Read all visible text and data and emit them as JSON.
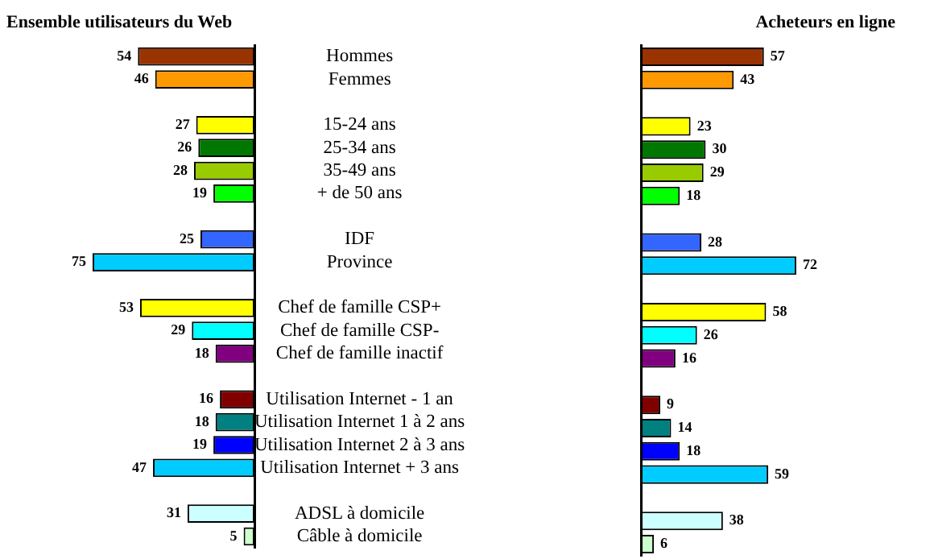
{
  "chart_data": [
    {
      "type": "bar",
      "title": "Ensemble utilisateurs du Web",
      "orientation": "horizontal",
      "data_labels": true,
      "tick_labels": "y",
      "categories": [
        "Hommes",
        "Femmes",
        null,
        "15-24 ans",
        "25-34 ans",
        "35-49 ans",
        "+ de 50 ans",
        null,
        "IDF",
        "Province",
        null,
        "Chef de famille CSP+",
        "Chef de famille CSP-",
        "Chef de famille inactif",
        null,
        "Utilisation Internet - 1 an",
        "Utilisation Internet 1 à 2 ans",
        "Utilisation Internet 2 à 3 ans",
        "Utilisation Internet + 3 ans",
        null,
        "ADSL à domicile",
        "Câble à domicile"
      ],
      "values": [
        54,
        46,
        null,
        27,
        26,
        28,
        19,
        null,
        25,
        75,
        null,
        53,
        29,
        18,
        null,
        16,
        18,
        19,
        47,
        null,
        31,
        5
      ],
      "colors": [
        "#993300",
        "#ff9900",
        null,
        "#ffff00",
        "#007700",
        "#99cc00",
        "#00ff00",
        null,
        "#3366ff",
        "#00ccff",
        null,
        "#ffff00",
        "#00ffff",
        "#800080",
        null,
        "#800000",
        "#008080",
        "#0000ff",
        "#00ccff",
        null,
        "#ccffff",
        "#ccffcc"
      ]
    },
    {
      "type": "bar",
      "title": "Acheteurs en ligne",
      "orientation": "horizontal",
      "data_labels": true,
      "tick_labels": false,
      "categories": [
        null,
        null,
        null,
        null,
        null,
        null,
        null,
        null,
        null,
        null,
        null,
        null,
        null,
        null,
        null,
        null,
        null,
        null,
        null,
        null,
        null,
        null
      ],
      "values": [
        57,
        43,
        null,
        23,
        30,
        29,
        18,
        null,
        28,
        72,
        null,
        58,
        26,
        16,
        null,
        9,
        14,
        18,
        59,
        null,
        38,
        6
      ],
      "colors": [
        "#993300",
        "#ff9900",
        null,
        "#ffff00",
        "#007700",
        "#99cc00",
        "#00ff00",
        null,
        "#3366ff",
        "#00ccff",
        null,
        "#ffff00",
        "#00ffff",
        "#800080",
        null,
        "#800000",
        "#008080",
        "#0000ff",
        "#00ccff",
        null,
        "#ccffff",
        "#ccffcc"
      ]
    }
  ]
}
